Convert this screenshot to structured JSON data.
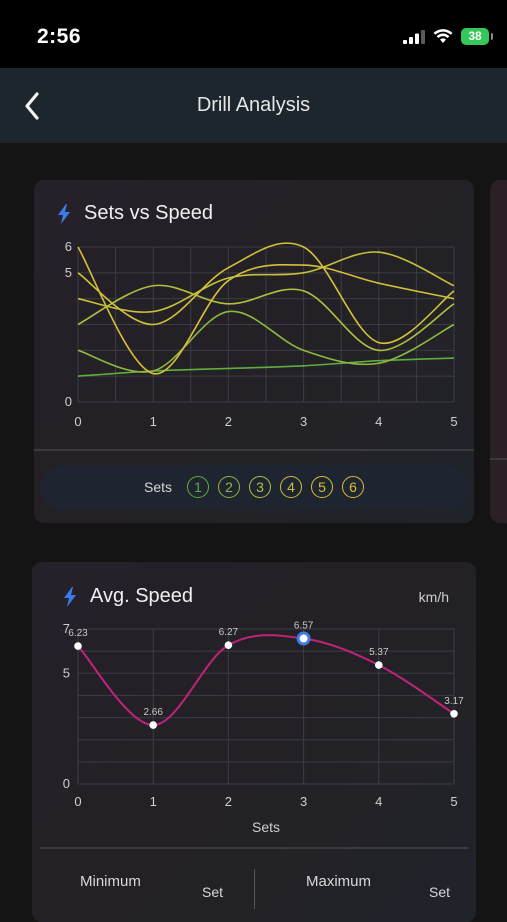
{
  "status_bar": {
    "time": "2:56",
    "battery": "38"
  },
  "nav": {
    "title": "Drill Analysis",
    "back_icon": "chevron-left-icon"
  },
  "colors": {
    "accent_bolt": "#3b7de8",
    "avg_line": "#c0237a",
    "set_colors": [
      "#5dae3f",
      "#8db83e",
      "#b4bf3d",
      "#c7c23a",
      "#d2c338",
      "#d6bf3a"
    ]
  },
  "sets_card": {
    "title": "Sets vs Speed",
    "sets_label": "Sets",
    "set_chips": [
      "1",
      "2",
      "3",
      "4",
      "5",
      "6"
    ],
    "chart_data": {
      "type": "line",
      "x": [
        0,
        1,
        2,
        3,
        4,
        5
      ],
      "xlim": [
        0,
        5
      ],
      "ylim": [
        0,
        6
      ],
      "y_ticks": [
        "0",
        "5",
        "6"
      ],
      "x_ticks": [
        "0",
        "1",
        "2",
        "3",
        "4",
        "5"
      ],
      "grid": true,
      "series": [
        {
          "values": [
            1.0,
            1.2,
            1.3,
            1.4,
            1.6,
            1.7
          ]
        },
        {
          "values": [
            2.0,
            1.2,
            3.5,
            2.0,
            1.5,
            3.0
          ]
        },
        {
          "values": [
            3.0,
            4.5,
            3.8,
            4.3,
            2.0,
            3.8
          ]
        },
        {
          "values": [
            4.0,
            3.5,
            4.8,
            5.0,
            5.8,
            4.5
          ]
        },
        {
          "values": [
            5.0,
            3.0,
            5.2,
            6.0,
            2.3,
            4.3
          ]
        },
        {
          "values": [
            6.0,
            1.1,
            4.7,
            5.3,
            4.6,
            4.0
          ]
        }
      ]
    }
  },
  "avg_card": {
    "title": "Avg. Speed",
    "unit": "km/h",
    "minimum_label": "Minimum",
    "maximum_label": "Maximum",
    "set_label_min": "Set",
    "set_label_max": "Set",
    "chart_data": {
      "type": "line",
      "x": [
        0,
        1,
        2,
        3,
        4,
        5
      ],
      "values": [
        6.23,
        2.66,
        6.27,
        6.57,
        5.37,
        3.17
      ],
      "data_labels": [
        "6.23",
        "2.66",
        "6.27",
        "6.57",
        "5.37",
        "3.17"
      ],
      "highlight_index": 3,
      "xlabel": "Sets",
      "xlim": [
        0,
        5
      ],
      "ylim": [
        0,
        7
      ],
      "y_ticks": [
        "0",
        "5",
        "7"
      ],
      "x_ticks": [
        "0",
        "1",
        "2",
        "3",
        "4",
        "5"
      ],
      "grid": true
    }
  }
}
